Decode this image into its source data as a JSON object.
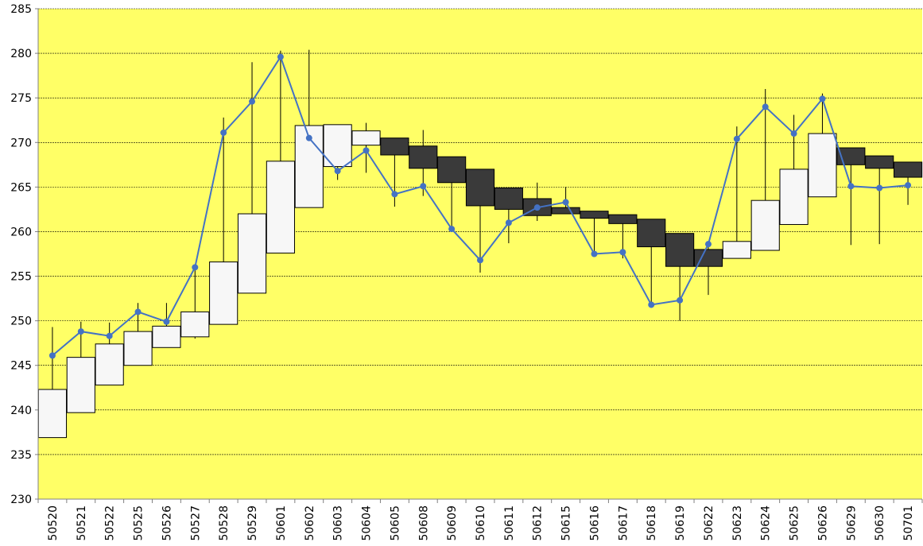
{
  "chart_data": {
    "type": "candlestick",
    "title": "",
    "xlabel": "",
    "ylabel": "",
    "ylim": [
      230,
      285
    ],
    "yticks": [
      230,
      235,
      240,
      245,
      250,
      255,
      260,
      265,
      270,
      275,
      280,
      285
    ],
    "grid": true,
    "categories": [
      "50520",
      "50521",
      "50522",
      "50525",
      "50526",
      "50527",
      "50528",
      "50529",
      "50601",
      "50602",
      "50603",
      "50604",
      "50605",
      "50608",
      "50609",
      "50610",
      "50611",
      "50612",
      "50615",
      "50616",
      "50617",
      "50618",
      "50619",
      "50622",
      "50623",
      "50624",
      "50625",
      "50626",
      "50629",
      "50630",
      "50701"
    ],
    "candles": [
      {
        "open": 236.9,
        "close": 242.3,
        "high": 249.3,
        "low": 236.9
      },
      {
        "open": 239.7,
        "close": 245.9,
        "high": 249.9,
        "low": 239.7
      },
      {
        "open": 242.8,
        "close": 247.4,
        "high": 249.8,
        "low": 242.8
      },
      {
        "open": 245.0,
        "close": 248.8,
        "high": 252.0,
        "low": 245.0
      },
      {
        "open": 247.0,
        "close": 249.4,
        "high": 252.0,
        "low": 247.0
      },
      {
        "open": 248.2,
        "close": 251.0,
        "high": 255.8,
        "low": 248.0
      },
      {
        "open": 249.6,
        "close": 256.6,
        "high": 272.8,
        "low": 249.6
      },
      {
        "open": 253.1,
        "close": 262.0,
        "high": 279.0,
        "low": 253.1
      },
      {
        "open": 257.6,
        "close": 267.9,
        "high": 280.3,
        "low": 257.6
      },
      {
        "open": 262.7,
        "close": 271.9,
        "high": 280.4,
        "low": 262.7
      },
      {
        "open": 267.3,
        "close": 272.0,
        "high": 272.0,
        "low": 265.8
      },
      {
        "open": 269.7,
        "close": 271.3,
        "high": 272.2,
        "low": 266.6
      },
      {
        "open": 270.5,
        "close": 268.6,
        "high": 270.5,
        "low": 262.8
      },
      {
        "open": 269.6,
        "close": 267.1,
        "high": 271.4,
        "low": 264.0
      },
      {
        "open": 268.4,
        "close": 265.5,
        "high": 268.4,
        "low": 260.0
      },
      {
        "open": 267.0,
        "close": 262.9,
        "high": 267.0,
        "low": 255.4
      },
      {
        "open": 264.9,
        "close": 262.5,
        "high": 264.9,
        "low": 258.7
      },
      {
        "open": 263.7,
        "close": 261.8,
        "high": 265.5,
        "low": 261.2
      },
      {
        "open": 262.7,
        "close": 262.0,
        "high": 265.0,
        "low": 262.0
      },
      {
        "open": 262.3,
        "close": 261.5,
        "high": 262.3,
        "low": 257.5
      },
      {
        "open": 261.9,
        "close": 260.9,
        "high": 261.9,
        "low": 257.0
      },
      {
        "open": 261.4,
        "close": 258.3,
        "high": 261.4,
        "low": 251.8
      },
      {
        "open": 259.8,
        "close": 256.1,
        "high": 259.8,
        "low": 250.0
      },
      {
        "open": 258.0,
        "close": 256.1,
        "high": 258.8,
        "low": 252.9
      },
      {
        "open": 257.0,
        "close": 258.9,
        "high": 271.8,
        "low": 257.0
      },
      {
        "open": 257.9,
        "close": 263.5,
        "high": 276.0,
        "low": 257.9
      },
      {
        "open": 260.8,
        "close": 267.0,
        "high": 273.1,
        "low": 260.8
      },
      {
        "open": 263.9,
        "close": 271.0,
        "high": 275.5,
        "low": 263.9
      },
      {
        "open": 269.4,
        "close": 267.5,
        "high": 269.4,
        "low": 258.5
      },
      {
        "open": 268.5,
        "close": 267.1,
        "high": 268.5,
        "low": 258.6
      },
      {
        "open": 267.8,
        "close": 266.1,
        "high": 267.8,
        "low": 263.0
      }
    ],
    "series": [
      {
        "values": [
          246.1,
          248.8,
          248.3,
          251.0,
          249.9,
          256.0,
          271.1,
          274.6,
          279.6,
          270.5,
          266.8,
          269.1,
          264.2,
          265.1,
          260.3,
          256.8,
          261.0,
          262.7,
          263.3,
          257.5,
          257.7,
          251.8,
          252.3,
          258.6,
          270.4,
          274.0,
          271.0,
          274.9,
          265.1,
          264.9,
          265.2
        ]
      }
    ],
    "colors": {
      "background": "#ffff66",
      "up_body": "#f7f7f7",
      "down_body": "#3a3a3a",
      "line": "#4472c4",
      "axis": "#808080"
    }
  }
}
